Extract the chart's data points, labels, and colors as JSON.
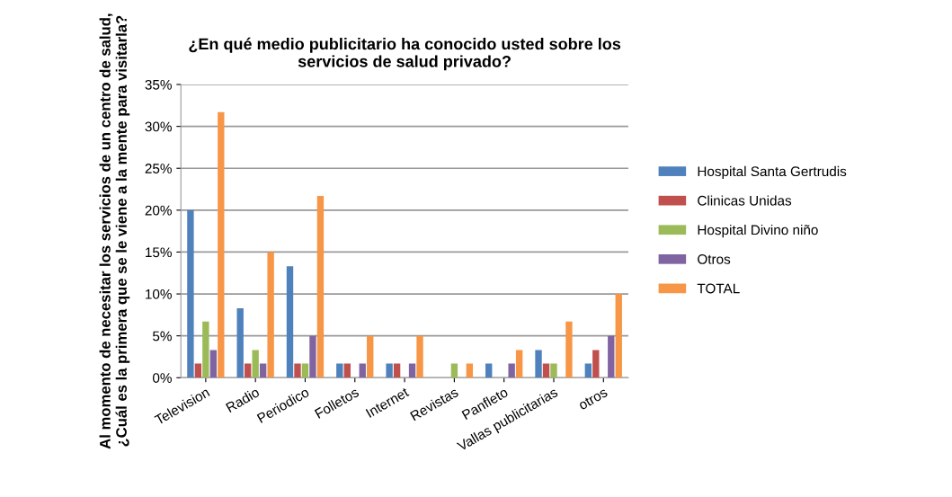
{
  "chart_data": {
    "type": "bar",
    "title": "¿En qué medio publicitario ha conocido usted sobre los\nservicios de salud privado?",
    "ylabel": "Al momento de necesitar los servicios de un centro de salud,\n¿Cuál es la primera que se le viene a la mente para visitarla?",
    "categories": [
      "Television",
      "Radio",
      "Periodico",
      "Folletos",
      "Internet",
      "Revistas",
      "Panfleto",
      "Vallas publicitarias",
      "otros"
    ],
    "series": [
      {
        "name": "Hospital Santa Gertrudis",
        "color": "#4f81bd",
        "values": [
          20,
          8.3,
          13.3,
          1.7,
          1.7,
          0,
          1.7,
          3.3,
          1.7
        ]
      },
      {
        "name": "Clinicas Unidas",
        "color": "#c0504d",
        "values": [
          1.7,
          1.7,
          1.7,
          1.7,
          1.7,
          0,
          0,
          1.7,
          3.3
        ]
      },
      {
        "name": "Hospital Divino niño",
        "color": "#9bbb59",
        "values": [
          6.7,
          3.3,
          1.7,
          0,
          0,
          1.7,
          0,
          1.7,
          0
        ]
      },
      {
        "name": "Otros",
        "color": "#8064a2",
        "values": [
          3.3,
          1.7,
          5,
          1.7,
          1.7,
          0,
          1.7,
          0,
          5
        ]
      },
      {
        "name": "TOTAL",
        "color": "#f79646",
        "values": [
          31.7,
          15,
          21.7,
          5,
          5,
          1.7,
          3.3,
          6.7,
          10
        ]
      }
    ],
    "ylim": [
      0,
      35
    ],
    "yticks": [
      {
        "value": 0,
        "label": "0%"
      },
      {
        "value": 5,
        "label": "5%"
      },
      {
        "value": 10,
        "label": "10%"
      },
      {
        "value": 15,
        "label": "15%"
      },
      {
        "value": 20,
        "label": "20%"
      },
      {
        "value": 25,
        "label": "25%"
      },
      {
        "value": 30,
        "label": "30%"
      },
      {
        "value": 35,
        "label": "35%"
      }
    ],
    "grid": "y",
    "legend": "right"
  }
}
